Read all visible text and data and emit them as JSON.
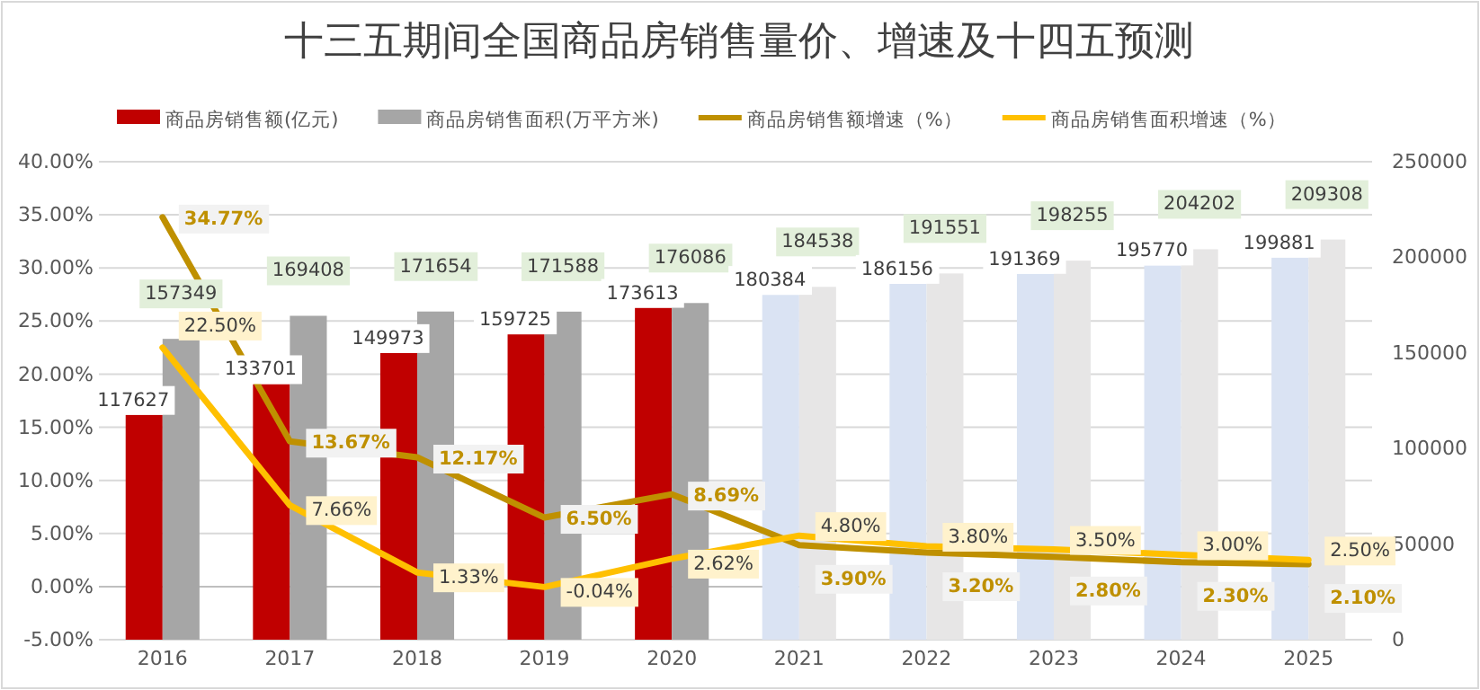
{
  "chart_data": {
    "type": "bar",
    "title": "十三五期间全国商品房销售量价、增速及十四五预测",
    "categories": [
      "2016",
      "2017",
      "2018",
      "2019",
      "2020",
      "2021",
      "2022",
      "2023",
      "2024",
      "2025"
    ],
    "series": [
      {
        "name": "商品房销售额(亿元)",
        "axis": "y2",
        "color": "#c00000",
        "colors": [
          "#c00000",
          "#c00000",
          "#c00000",
          "#c00000",
          "#c00000",
          "#dae3f3",
          "#dae3f3",
          "#dae3f3",
          "#dae3f3",
          "#dae3f3"
        ],
        "values": [
          117627,
          133701,
          149973,
          159725,
          173613,
          180384,
          186156,
          191369,
          195770,
          199881
        ],
        "value_labels": [
          "117627",
          "133701",
          "149973",
          "159725",
          "173613",
          "180384",
          "186156",
          "191369",
          "195770",
          "199881"
        ]
      },
      {
        "name": "商品房销售面积(万平方米)",
        "axis": "y2",
        "color": "#a6a6a6",
        "colors": [
          "#a6a6a6",
          "#a6a6a6",
          "#a6a6a6",
          "#a6a6a6",
          "#a6a6a6",
          "#e7e6e6",
          "#e7e6e6",
          "#e7e6e6",
          "#e7e6e6",
          "#e7e6e6"
        ],
        "values": [
          157349,
          169408,
          171654,
          171588,
          176086,
          184538,
          191551,
          198255,
          204202,
          209308
        ],
        "value_labels": [
          "157349",
          "169408",
          "171654",
          "171588",
          "176086",
          "184538",
          "191551",
          "198255",
          "204202",
          "209308"
        ]
      },
      {
        "name": "商品房销售额增速（%）",
        "type": "line",
        "color": "#bf9000",
        "values": [
          34.77,
          13.67,
          12.17,
          6.5,
          8.69,
          3.9,
          3.2,
          2.8,
          2.3,
          2.1
        ],
        "value_labels": [
          "34.77%",
          "13.67%",
          "12.17%",
          "6.50%",
          "8.69%",
          "3.90%",
          "3.20%",
          "2.80%",
          "2.30%",
          "2.10%"
        ]
      },
      {
        "name": "商品房销售面积增速（%）",
        "type": "line",
        "color": "#ffc000",
        "values": [
          22.5,
          7.66,
          1.33,
          -0.04,
          2.62,
          4.8,
          3.8,
          3.5,
          3.0,
          2.5
        ],
        "value_labels": [
          "22.50%",
          "7.66%",
          "1.33%",
          "-0.04%",
          "2.62%",
          "4.80%",
          "3.80%",
          "3.50%",
          "3.00%",
          "2.50%"
        ]
      }
    ],
    "ylim": [
      -5,
      40
    ],
    "yticks": [
      {
        "value": -5,
        "label": "-5.00%"
      },
      {
        "value": 0,
        "label": "0.00%"
      },
      {
        "value": 5,
        "label": "5.00%"
      },
      {
        "value": 10,
        "label": "10.00%"
      },
      {
        "value": 15,
        "label": "15.00%"
      },
      {
        "value": 20,
        "label": "20.00%"
      },
      {
        "value": 25,
        "label": "25.00%"
      },
      {
        "value": 30,
        "label": "30.00%"
      },
      {
        "value": 35,
        "label": "35.00%"
      },
      {
        "value": 40,
        "label": "40.00%"
      }
    ],
    "y2lim": [
      0,
      250000
    ],
    "y2ticks": [
      0,
      50000,
      100000,
      150000,
      200000,
      250000
    ],
    "grid": "y",
    "legend": "top",
    "marker": "none",
    "line_style": "solid"
  }
}
